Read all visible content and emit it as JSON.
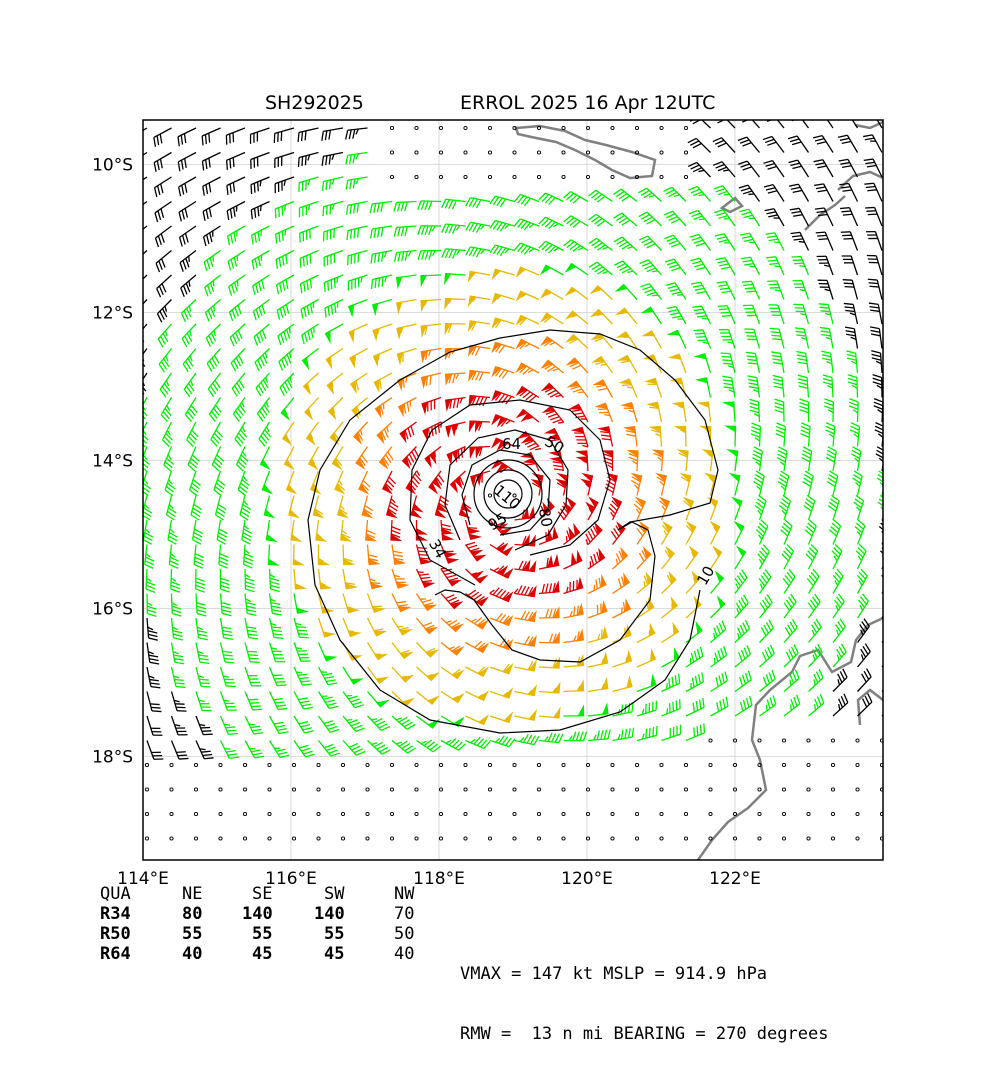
{
  "header": {
    "storm_id": "SH292025",
    "storm_title": "ERROL 2025 16 Apr 12UTC"
  },
  "axes": {
    "lon_labels": [
      "114°E",
      "116°E",
      "118°E",
      "120°E",
      "122°E"
    ],
    "lat_labels": [
      "10°S",
      "12°S",
      "14°S",
      "16°S",
      "18°S"
    ],
    "lon_values": [
      114,
      116,
      118,
      120,
      122
    ],
    "lat_values": [
      -10,
      -12,
      -14,
      -16,
      -18
    ],
    "lon_range": [
      114,
      124
    ],
    "lat_range": [
      -19.4,
      -9.4
    ],
    "grid": true
  },
  "wind_map": {
    "center_lon": 118.9,
    "center_lat": -14.5,
    "wind_radii_colors": {
      "34kt": "#00ee00",
      "50kt": "#e8b800",
      "64kt": "#ff7f00",
      "high": "#dd0000",
      "background": "#000000"
    },
    "contour_labels": [
      "34",
      "50",
      "64",
      "80",
      "95",
      "110"
    ],
    "extra_contour_label": "10",
    "coastline_color": "#808080"
  },
  "radii_table": {
    "headers": [
      "QUA",
      "NE",
      "SE",
      "SW",
      "NW"
    ],
    "rows": [
      {
        "label": "R34",
        "ne": "80",
        "se": "140",
        "sw": "140",
        "nw": "70"
      },
      {
        "label": "R50",
        "ne": "55",
        "se": "55",
        "sw": "55",
        "nw": "50"
      },
      {
        "label": "R64",
        "ne": "40",
        "se": "45",
        "sw": "45",
        "nw": "40"
      }
    ]
  },
  "stats": {
    "line1": "VMAX = 147 kt MSLP = 914.9 hPa",
    "line2": "RMW =  13 n mi BEARING = 270 degrees"
  }
}
